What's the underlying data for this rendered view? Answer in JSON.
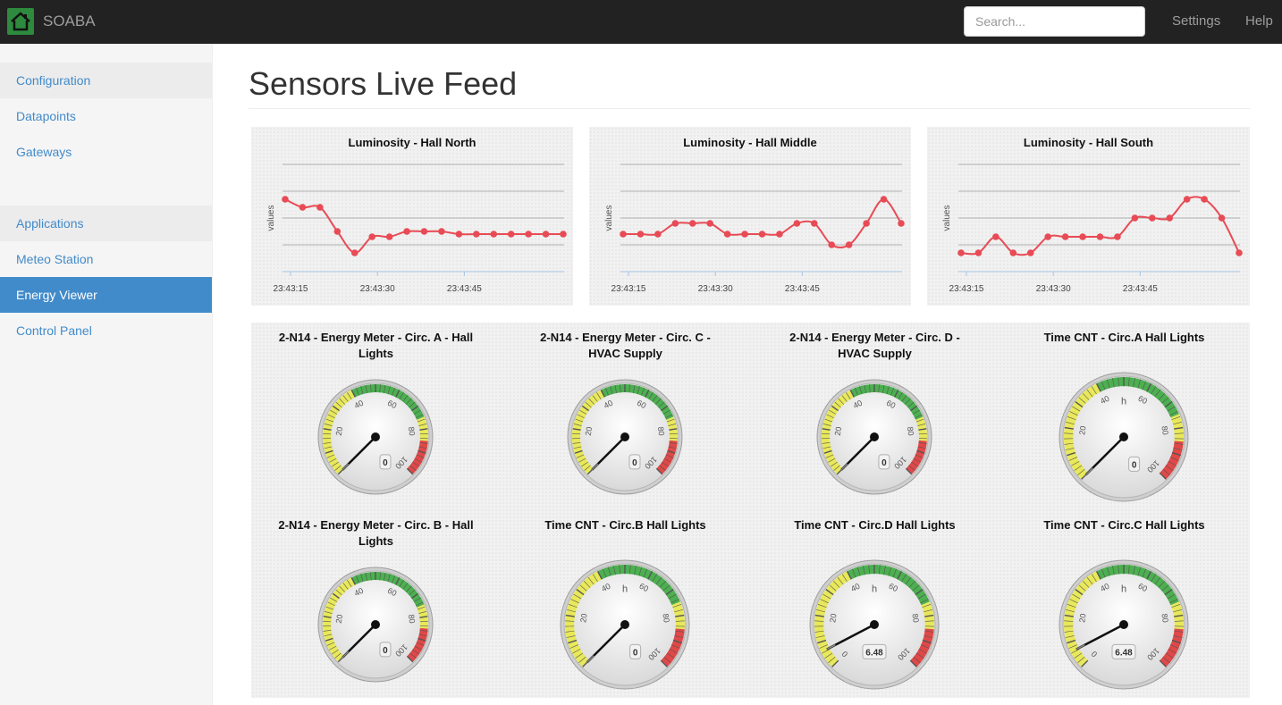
{
  "app": {
    "name": "SOABA",
    "search_placeholder": "Search...",
    "nav": [
      "Settings",
      "Help"
    ]
  },
  "sidebar": {
    "items": [
      {
        "label": "Configuration",
        "type": "header"
      },
      {
        "label": "Datapoints",
        "type": "link"
      },
      {
        "label": "Gateways",
        "type": "link"
      },
      {
        "label": "Applications",
        "type": "header"
      },
      {
        "label": "Meteo Station",
        "type": "link"
      },
      {
        "label": "Energy Viewer",
        "type": "active"
      },
      {
        "label": "Control Panel",
        "type": "link"
      }
    ]
  },
  "page": {
    "title": "Sensors Live Feed"
  },
  "colors": {
    "accent": "#428bca",
    "series": "#e84b55",
    "navbar": "#222222"
  },
  "chart_data": [
    {
      "type": "line",
      "title": "Luminosity - Hall North",
      "ylabel": "values",
      "x_ticks": [
        "23:43:15",
        "23:43:30",
        "23:43:45"
      ],
      "x": [
        0,
        1,
        2,
        3,
        4,
        5,
        6,
        7,
        8,
        9,
        10,
        11,
        12,
        13,
        14,
        15,
        16
      ],
      "values": [
        67,
        64,
        64,
        55,
        47,
        53,
        53,
        55,
        55,
        55,
        54,
        54,
        54,
        54,
        54,
        54,
        54
      ],
      "ylim": [
        40,
        80
      ]
    },
    {
      "type": "line",
      "title": "Luminosity - Hall Middle",
      "ylabel": "values",
      "x_ticks": [
        "23:43:15",
        "23:43:30",
        "23:43:45"
      ],
      "x": [
        0,
        1,
        2,
        3,
        4,
        5,
        6,
        7,
        8,
        9,
        10,
        11,
        12,
        13,
        14,
        15,
        16
      ],
      "values": [
        54,
        54,
        54,
        58,
        58,
        58,
        54,
        54,
        54,
        54,
        58,
        58,
        50,
        50,
        58,
        67,
        58
      ],
      "ylim": [
        40,
        80
      ]
    },
    {
      "type": "line",
      "title": "Luminosity - Hall South",
      "ylabel": "values",
      "x_ticks": [
        "23:43:15",
        "23:43:30",
        "23:43:45"
      ],
      "x": [
        0,
        1,
        2,
        3,
        4,
        5,
        6,
        7,
        8,
        9,
        10,
        11,
        12,
        13,
        14,
        15,
        16
      ],
      "values": [
        47,
        47,
        53,
        47,
        47,
        53,
        53,
        53,
        53,
        53,
        60,
        60,
        60,
        67,
        67,
        60,
        47
      ],
      "ylim": [
        40,
        80
      ]
    }
  ],
  "gauges": [
    {
      "title": "2-N14 - Energy Meter - Circ. A - Hall Lights",
      "value": "0",
      "unit": "",
      "ticks": [
        "20",
        "40",
        "60",
        "80",
        "100"
      ]
    },
    {
      "title": "2-N14 - Energy Meter - Circ. C - HVAC Supply",
      "value": "0",
      "unit": "",
      "ticks": [
        "20",
        "40",
        "60",
        "80",
        "100"
      ]
    },
    {
      "title": "2-N14 - Energy Meter - Circ. D - HVAC Supply",
      "value": "0",
      "unit": "",
      "ticks": [
        "20",
        "40",
        "60",
        "80",
        "100"
      ]
    },
    {
      "title": "Time CNT - Circ.A Hall Lights",
      "value": "0",
      "unit": "h",
      "ticks": [
        "20",
        "40",
        "60",
        "80",
        "100"
      ]
    },
    {
      "title": "2-N14 - Energy Meter - Circ. B - Hall Lights",
      "value": "0",
      "unit": "",
      "ticks": [
        "20",
        "40",
        "60",
        "80",
        "100"
      ]
    },
    {
      "title": "Time CNT - Circ.B Hall Lights",
      "value": "0",
      "unit": "h",
      "ticks": [
        "20",
        "40",
        "60",
        "80",
        "100"
      ]
    },
    {
      "title": "Time CNT - Circ.D Hall Lights",
      "value": "6.48",
      "unit": "h",
      "ticks": [
        "0",
        "20",
        "40",
        "60",
        "80",
        "100"
      ]
    },
    {
      "title": "Time CNT - Circ.C Hall Lights",
      "value": "6.48",
      "unit": "h",
      "ticks": [
        "0",
        "20",
        "40",
        "60",
        "80",
        "100"
      ]
    }
  ]
}
